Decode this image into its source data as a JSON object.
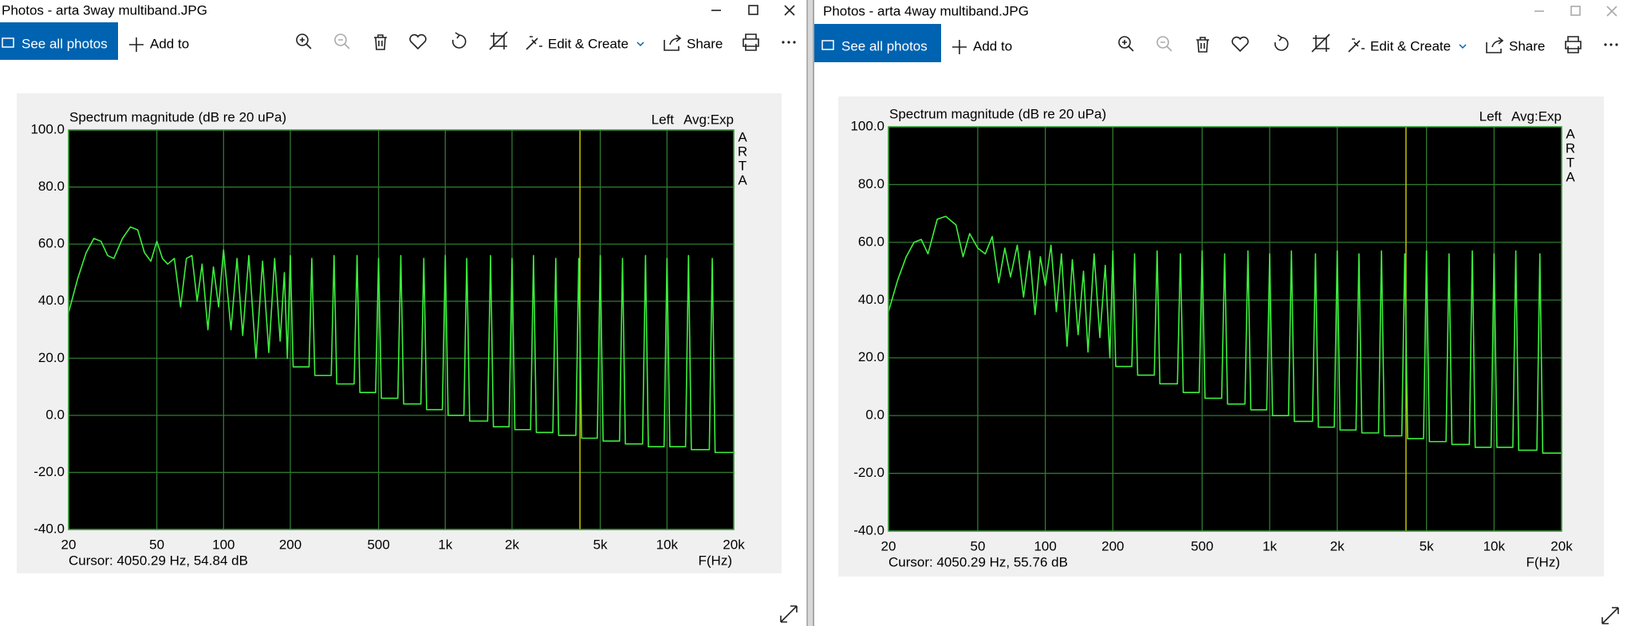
{
  "windows": [
    {
      "title": "Photos - arta 3way multiband.JPG",
      "toolbar": {
        "see_all": "See all photos",
        "add_to": "Add to",
        "edit_create": "Edit & Create",
        "share": "Share"
      },
      "chart": {
        "type": "line",
        "title": "Spectrum magnitude (dB re 20 uPa)",
        "channel": "Left",
        "averaging": "Avg:Exp",
        "brand": [
          "A",
          "R",
          "T",
          "A"
        ],
        "x_label": "F(Hz)",
        "cursor_label": "Cursor: 4050.29 Hz, 54.84 dB",
        "cursor_x": 4050.29,
        "cursor_color": "#c8c400",
        "log_x": true,
        "grid": true,
        "background": "#000000",
        "grid_color": "#2f7a2f",
        "xlim": [
          20,
          20000
        ],
        "xticks": [
          20,
          50,
          100,
          200,
          500,
          {
            "value": 1000,
            "label": "1k"
          },
          {
            "value": 2000,
            "label": "2k"
          },
          {
            "value": 5000,
            "label": "5k"
          },
          {
            "value": 10000,
            "label": "10k"
          },
          {
            "value": 20000,
            "label": "20k"
          }
        ],
        "ylim": [
          -40,
          100
        ],
        "yticks": [
          {
            "value": -40,
            "label": "-40.0"
          },
          {
            "value": -20,
            "label": "-20.0"
          },
          {
            "value": 0,
            "label": "0.0"
          },
          {
            "value": 20,
            "label": "20.0"
          },
          {
            "value": 40,
            "label": "40.0"
          },
          {
            "value": 60,
            "label": "60.0"
          },
          {
            "value": 80,
            "label": "80.0"
          },
          {
            "value": 100,
            "label": "100.0"
          }
        ],
        "series": [
          {
            "color": "#3cf03c",
            "x": [
              20,
              22,
              24,
              26,
              28,
              30,
              32,
              35,
              38,
              41,
              44,
              47,
              50,
              53,
              56,
              60,
              64,
              68,
              72,
              76,
              80,
              85,
              90,
              95,
              100,
              108,
              115,
              122,
              130,
              140,
              150,
              160,
              170,
              180,
              188,
              194,
              200,
              206,
              243,
              250,
              258,
              306,
              315,
              324,
              388,
              400,
              412,
              485,
              500,
              515,
              611,
              630,
              649,
              776,
              800,
              824,
              970,
              1000,
              1030,
              1213,
              1250,
              1288,
              1552,
              1600,
              1648,
              1940,
              2000,
              2060,
              2425,
              2500,
              2575,
              3056,
              3150,
              3245,
              3880,
              4000,
              4120,
              4850,
              5000,
              5150,
              6111,
              6300,
              6489,
              7760,
              8000,
              8240,
              9700,
              10000,
              10300,
              12125,
              12500,
              12875,
              15520,
              16000,
              16480,
              20000
            ],
            "values": [
              36,
              48,
              57,
              62,
              61,
              56,
              55,
              62,
              66,
              65,
              57,
              54,
              61,
              55,
              53,
              55,
              38,
              55,
              56,
              40,
              53,
              30,
              52,
              38,
              58,
              30,
              55,
              28,
              56,
              20,
              54,
              22,
              55,
              26,
              50,
              20,
              56,
              17,
              17,
              55,
              14,
              14,
              56,
              11,
              11,
              56,
              8,
              8,
              55,
              6,
              6,
              56,
              4,
              4,
              55,
              2,
              2,
              56,
              0,
              0,
              55,
              -2,
              -2,
              56,
              -4,
              -4,
              55,
              -5,
              -5,
              56,
              -6,
              -6,
              55,
              -7,
              -7,
              55,
              -8,
              -8,
              56,
              -9,
              -9,
              55,
              -10,
              -10,
              56,
              -11,
              -11,
              55,
              -11,
              -11,
              56,
              -12,
              -12,
              55,
              -13,
              -13
            ]
          }
        ]
      }
    },
    {
      "title": "Photos - arta 4way multiband.JPG",
      "toolbar": {
        "see_all": "See all photos",
        "add_to": "Add to",
        "edit_create": "Edit & Create",
        "share": "Share"
      },
      "chart": {
        "type": "line",
        "title": "Spectrum magnitude (dB re 20 uPa)",
        "channel": "Left",
        "averaging": "Avg:Exp",
        "brand": [
          "A",
          "R",
          "T",
          "A"
        ],
        "x_label": "F(Hz)",
        "cursor_label": "Cursor: 4050.29 Hz, 55.76 dB",
        "cursor_x": 4050.29,
        "cursor_color": "#c8c400",
        "log_x": true,
        "grid": true,
        "background": "#000000",
        "grid_color": "#2f7a2f",
        "xlim": [
          20,
          20000
        ],
        "xticks": [
          20,
          50,
          100,
          200,
          500,
          {
            "value": 1000,
            "label": "1k"
          },
          {
            "value": 2000,
            "label": "2k"
          },
          {
            "value": 5000,
            "label": "5k"
          },
          {
            "value": 10000,
            "label": "10k"
          },
          {
            "value": 20000,
            "label": "20k"
          }
        ],
        "ylim": [
          -40,
          100
        ],
        "yticks": [
          {
            "value": -40,
            "label": "-40.0"
          },
          {
            "value": -20,
            "label": "-20.0"
          },
          {
            "value": 0,
            "label": "0.0"
          },
          {
            "value": 20,
            "label": "20.0"
          },
          {
            "value": 40,
            "label": "40.0"
          },
          {
            "value": 60,
            "label": "60.0"
          },
          {
            "value": 80,
            "label": "80.0"
          },
          {
            "value": 100,
            "label": "100.0"
          }
        ],
        "series": [
          {
            "color": "#3cf03c",
            "x": [
              20,
              22,
              24,
              26,
              28,
              30,
              33,
              36,
              40,
              43,
              46,
              50,
              54,
              58,
              62,
              66,
              70,
              75,
              80,
              85,
              90,
              95,
              100,
              106,
              112,
              118,
              125,
              132,
              140,
              148,
              155,
              165,
              175,
              185,
              194,
              200,
              206,
              243,
              250,
              258,
              306,
              315,
              324,
              388,
              400,
              412,
              485,
              500,
              515,
              611,
              630,
              649,
              776,
              800,
              824,
              970,
              1000,
              1030,
              1213,
              1250,
              1288,
              1552,
              1600,
              1648,
              1940,
              2000,
              2060,
              2425,
              2500,
              2575,
              3056,
              3150,
              3245,
              3880,
              4000,
              4120,
              4850,
              5000,
              5150,
              6111,
              6300,
              6489,
              7760,
              8000,
              8240,
              9700,
              10000,
              10300,
              12125,
              12500,
              12875,
              15520,
              16000,
              16480,
              20000
            ],
            "values": [
              36,
              47,
              55,
              60,
              61,
              56,
              68,
              69,
              66,
              55,
              63,
              58,
              56,
              62,
              46,
              58,
              48,
              59,
              41,
              57,
              35,
              55,
              45,
              59,
              36,
              56,
              24,
              54,
              28,
              50,
              22,
              56,
              27,
              52,
              20,
              57,
              17,
              17,
              56,
              14,
              14,
              57,
              11,
              11,
              56,
              8,
              8,
              57,
              6,
              6,
              56,
              4,
              4,
              57,
              2,
              2,
              56,
              0,
              0,
              57,
              -2,
              -2,
              56,
              -4,
              -4,
              57,
              -5,
              -5,
              56,
              -6,
              -6,
              57,
              -7,
              -7,
              56,
              -8,
              -8,
              57,
              -9,
              -9,
              56,
              -10,
              -10,
              57,
              -11,
              -11,
              56,
              -11,
              -11,
              57,
              -12,
              -12,
              56,
              -13,
              -13
            ]
          }
        ]
      }
    }
  ]
}
